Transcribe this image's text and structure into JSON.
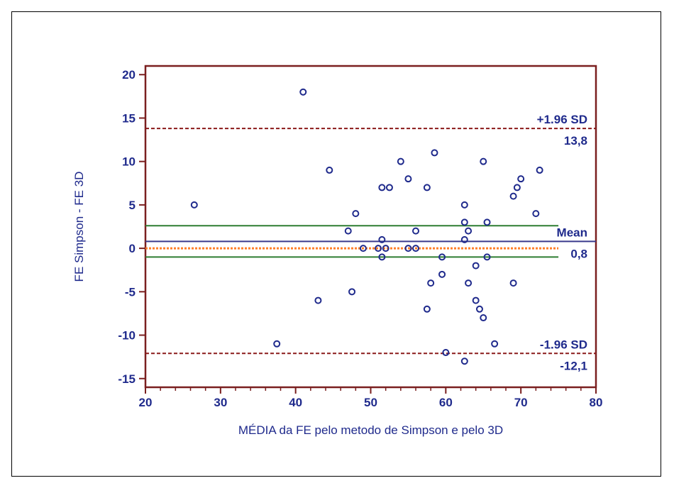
{
  "chart_data": {
    "type": "scatter",
    "xlabel": "MÉDIA da  FE pelo metodo de Simpson e pelo 3D",
    "ylabel": "FE Simpson - FE 3D",
    "xlim": [
      20,
      80
    ],
    "ylim": [
      -16,
      21
    ],
    "x_ticks": [
      20,
      30,
      40,
      50,
      60,
      70,
      80
    ],
    "y_ticks": [
      -15,
      -10,
      -5,
      0,
      5,
      10,
      15,
      20
    ],
    "grid": false,
    "points": [
      {
        "x": 26.5,
        "y": 5
      },
      {
        "x": 37.5,
        "y": -11
      },
      {
        "x": 41,
        "y": 18
      },
      {
        "x": 43,
        "y": -6
      },
      {
        "x": 44.5,
        "y": 9
      },
      {
        "x": 47,
        "y": 2
      },
      {
        "x": 47.5,
        "y": -5
      },
      {
        "x": 48,
        "y": 4
      },
      {
        "x": 49,
        "y": 0
      },
      {
        "x": 51,
        "y": 0
      },
      {
        "x": 51.5,
        "y": 7
      },
      {
        "x": 51.5,
        "y": 1
      },
      {
        "x": 51.5,
        "y": -1
      },
      {
        "x": 52,
        "y": 0
      },
      {
        "x": 52.5,
        "y": 7
      },
      {
        "x": 54,
        "y": 10
      },
      {
        "x": 55,
        "y": 8
      },
      {
        "x": 55,
        "y": 0
      },
      {
        "x": 56,
        "y": 2
      },
      {
        "x": 56,
        "y": 0
      },
      {
        "x": 57.5,
        "y": 7
      },
      {
        "x": 57.5,
        "y": -7
      },
      {
        "x": 58,
        "y": -4
      },
      {
        "x": 58.5,
        "y": 11
      },
      {
        "x": 59.5,
        "y": -1
      },
      {
        "x": 59.5,
        "y": -3
      },
      {
        "x": 60,
        "y": -12
      },
      {
        "x": 62.5,
        "y": 5
      },
      {
        "x": 62.5,
        "y": 3
      },
      {
        "x": 62.5,
        "y": 1
      },
      {
        "x": 62.5,
        "y": -13
      },
      {
        "x": 63,
        "y": 2
      },
      {
        "x": 63,
        "y": -4
      },
      {
        "x": 64,
        "y": -2
      },
      {
        "x": 64,
        "y": -6
      },
      {
        "x": 64.5,
        "y": -7
      },
      {
        "x": 65,
        "y": 10
      },
      {
        "x": 65,
        "y": -8
      },
      {
        "x": 65.5,
        "y": 3
      },
      {
        "x": 65.5,
        "y": -1
      },
      {
        "x": 66.5,
        "y": -11
      },
      {
        "x": 69,
        "y": 6
      },
      {
        "x": 69,
        "y": -4
      },
      {
        "x": 69.5,
        "y": 7
      },
      {
        "x": 70,
        "y": 8
      },
      {
        "x": 72,
        "y": 4
      },
      {
        "x": 72.5,
        "y": 9
      }
    ],
    "reference_lines": [
      {
        "name": "upper-loa",
        "y": 13.8,
        "color": "#8b1a1a",
        "style": "dashed",
        "label_above": "+1.96 SD",
        "label_below": "13,8",
        "x_range": [
          20,
          80
        ]
      },
      {
        "name": "mean",
        "y": 0.8,
        "color": "#3a3a8c",
        "style": "solid",
        "label_above": "Mean",
        "label_below": "0,8",
        "x_range": [
          20,
          80
        ]
      },
      {
        "name": "lower-loa",
        "y": -12.1,
        "color": "#8b1a1a",
        "style": "dashed",
        "label_above": "-1.96 SD",
        "label_below": "-12,1",
        "x_range": [
          20,
          80
        ]
      },
      {
        "name": "mean-ci-upper",
        "y": 2.6,
        "color": "#2e7d32",
        "style": "solid",
        "x_range": [
          20,
          75
        ]
      },
      {
        "name": "mean-ci-lower",
        "y": -1.0,
        "color": "#2e7d32",
        "style": "solid",
        "x_range": [
          20,
          75
        ]
      },
      {
        "name": "zero-line",
        "y": 0,
        "color": "#ff7f2a",
        "style": "dotted",
        "x_range": [
          20,
          75
        ]
      }
    ]
  },
  "colors": {
    "axis": "#7a1f1f",
    "text": "#1f2a8c",
    "marker": "#1f2a8c"
  }
}
